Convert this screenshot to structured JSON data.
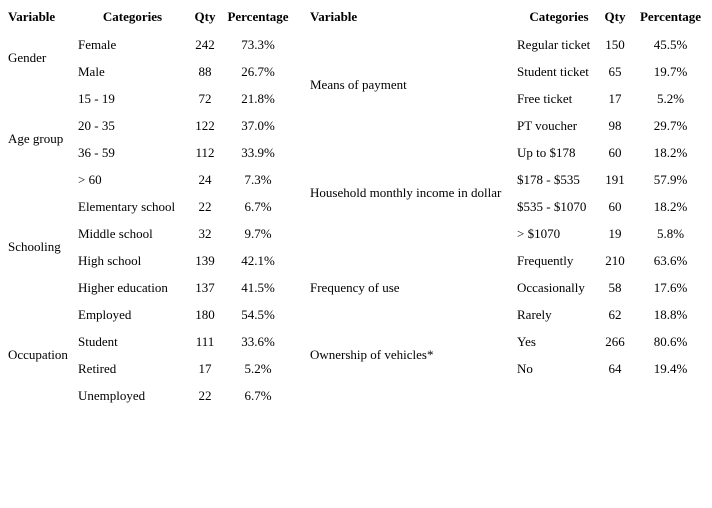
{
  "page": {
    "background": "#ffffff",
    "text_color": "#000000"
  },
  "tables": [
    {
      "headers": {
        "variable": "Variable",
        "categories": "Categories",
        "qty": "Qty",
        "percentage": "Percentage"
      },
      "groups": [
        {
          "variable": "Gender",
          "rows": [
            [
              "Female",
              "242",
              "73.3%"
            ],
            [
              "Male",
              "88",
              "26.7%"
            ]
          ]
        },
        {
          "variable": "Age group",
          "rows": [
            [
              "15 - 19",
              "72",
              "21.8%"
            ],
            [
              "20 - 35",
              "122",
              "37.0%"
            ],
            [
              "36 - 59",
              "112",
              "33.9%"
            ],
            [
              "> 60",
              "24",
              "7.3%"
            ]
          ]
        },
        {
          "variable": "Schooling",
          "rows": [
            [
              "Elementary school",
              "22",
              "6.7%"
            ],
            [
              "Middle school",
              "32",
              "9.7%"
            ],
            [
              "High school",
              "139",
              "42.1%"
            ],
            [
              "Higher education",
              "137",
              "41.5%"
            ]
          ]
        },
        {
          "variable": "Occupation",
          "rows": [
            [
              "Employed",
              "180",
              "54.5%"
            ],
            [
              "Student",
              "111",
              "33.6%"
            ],
            [
              "Retired",
              "17",
              "5.2%"
            ],
            [
              "Unemployed",
              "22",
              "6.7%"
            ]
          ]
        }
      ]
    },
    {
      "headers": {
        "variable": "Variable",
        "categories": "Categories",
        "qty": "Qty",
        "percentage": "Percentage"
      },
      "groups": [
        {
          "variable": "Means of payment",
          "rows": [
            [
              "Regular ticket",
              "150",
              "45.5%"
            ],
            [
              "Student ticket",
              "65",
              "19.7%"
            ],
            [
              "Free ticket",
              "17",
              "5.2%"
            ],
            [
              "PT voucher",
              "98",
              "29.7%"
            ]
          ]
        },
        {
          "variable": "Household monthly income in dollar",
          "rows": [
            [
              "Up to $178",
              "60",
              "18.2%"
            ],
            [
              "$178 - $535",
              "191",
              "57.9%"
            ],
            [
              "$535 - $1070",
              "60",
              "18.2%"
            ],
            [
              "> $1070",
              "19",
              "5.8%"
            ]
          ]
        },
        {
          "variable": "Frequency of use",
          "rows": [
            [
              "Frequently",
              "210",
              "63.6%"
            ],
            [
              "Occasionally",
              "58",
              "17.6%"
            ],
            [
              "Rarely",
              "62",
              "18.8%"
            ]
          ]
        },
        {
          "variable": "Ownership of vehicles*",
          "rows": [
            [
              "Yes",
              "266",
              "80.6%"
            ],
            [
              "No",
              "64",
              "19.4%"
            ]
          ]
        }
      ]
    }
  ]
}
